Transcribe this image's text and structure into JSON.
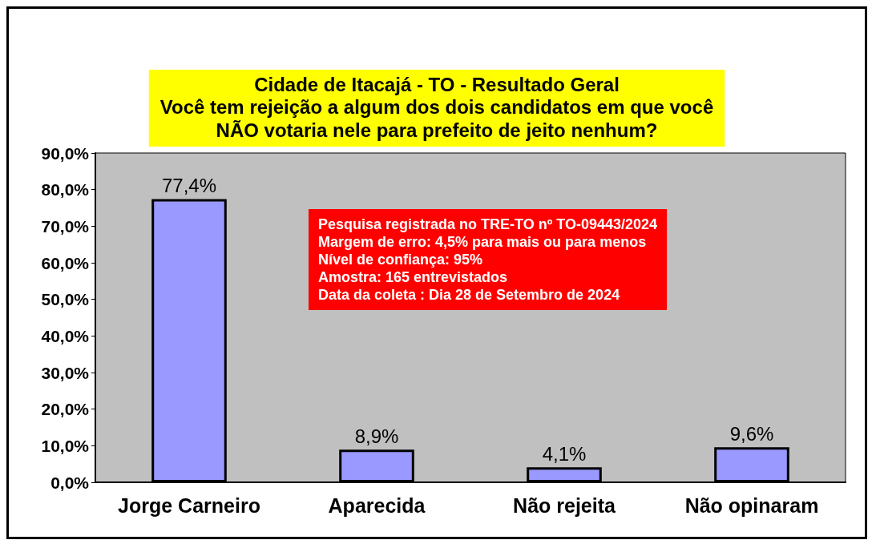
{
  "chart_data": {
    "type": "bar",
    "title": "Cidade de Itacajá - TO - Resultado Geral",
    "subtitle": "Você tem rejeição a algum dos dois candidatos em que você\nNÃO votaria nele para prefeito de jeito nenhum?",
    "categories": [
      "Jorge Carneiro",
      "Aparecida",
      "Não rejeita",
      "Não opinaram"
    ],
    "values": [
      77.4,
      8.9,
      4.1,
      9.6
    ],
    "value_labels": [
      "77,4%",
      "8,9%",
      "4,1%",
      "9,6%"
    ],
    "color": "#9999ff",
    "ylim": [
      0,
      90
    ],
    "yticks": [
      {
        "value": 0,
        "label": "0,0%"
      },
      {
        "value": 10,
        "label": "10,0%"
      },
      {
        "value": 20,
        "label": "20,0%"
      },
      {
        "value": 30,
        "label": "30,0%"
      },
      {
        "value": 40,
        "label": "40,0%"
      },
      {
        "value": 50,
        "label": "50,0%"
      },
      {
        "value": 60,
        "label": "60,0%"
      },
      {
        "value": 70,
        "label": "70,0%"
      },
      {
        "value": 80,
        "label": "80,0%"
      },
      {
        "value": 90,
        "label": "90,0%"
      }
    ],
    "grid": false,
    "annotations": [
      "Pesquisa registrada no TRE-TO nº TO-09443/2024",
      "Margem de erro: 4,5% para mais ou para menos",
      "Nível de confiança: 95%",
      "Amostra: 165 entrevistados",
      "Data da coleta : Dia 28 de Setembro de 2024"
    ]
  }
}
